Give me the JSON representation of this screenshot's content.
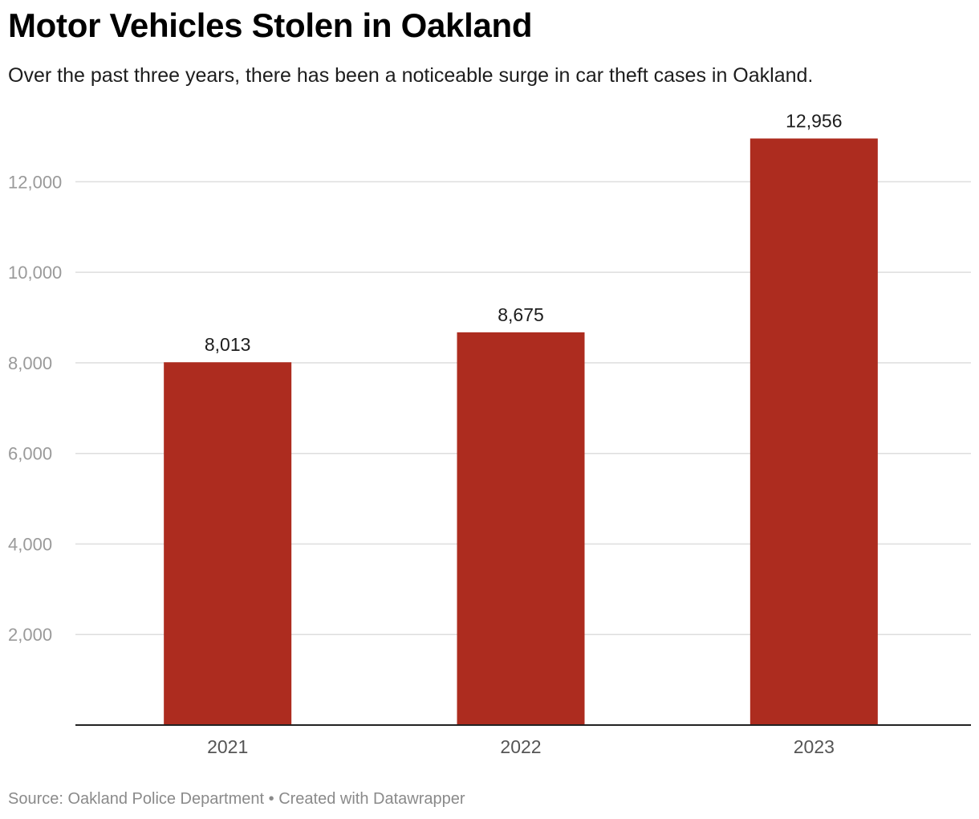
{
  "chart_data": {
    "type": "bar",
    "title": "Motor Vehicles Stolen in Oakland",
    "subtitle": "Over the past three years, there has been a noticeable surge in car theft cases in Oakland.",
    "categories": [
      "2021",
      "2022",
      "2023"
    ],
    "values": [
      8013,
      8675,
      12956
    ],
    "value_labels": [
      "8,013",
      "8,675",
      "12,956"
    ],
    "yticks": [
      2000,
      4000,
      6000,
      8000,
      10000,
      12000
    ],
    "ytick_labels": [
      "2,000",
      "4,000",
      "6,000",
      "8,000",
      "10,000",
      "12,000"
    ],
    "ylim": [
      0,
      13000
    ],
    "xlabel": "",
    "ylabel": "",
    "grid": true,
    "bar_color": "#ad2c1f"
  },
  "footer": {
    "source": "Source: Oakland Police Department",
    "separator": " • ",
    "credit": "Created with Datawrapper"
  }
}
